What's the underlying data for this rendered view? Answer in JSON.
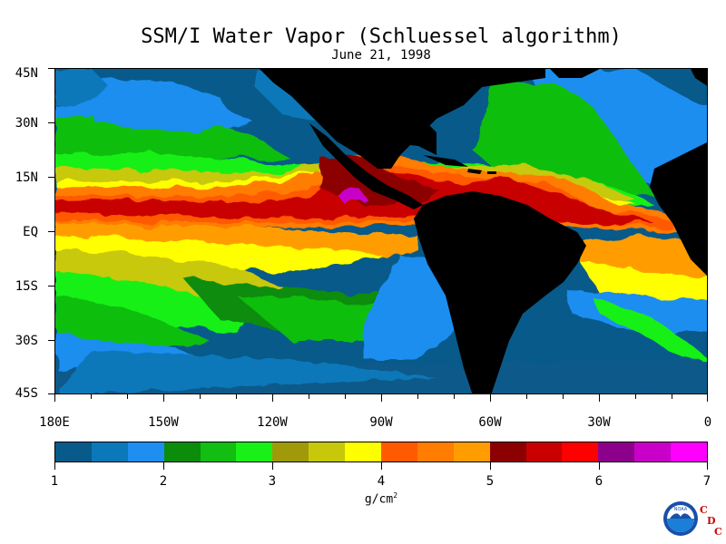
{
  "title": "SSM/I Water Vapor (Schluessel algorithm)",
  "subtitle": "June 21, 1998",
  "map": {
    "latitude_labels": [
      "45N",
      "30N",
      "15N",
      "EQ",
      "15S",
      "30S",
      "45S"
    ],
    "longitude_labels": [
      "180E",
      "150W",
      "120W",
      "90W",
      "60W",
      "30W",
      "0"
    ],
    "extent": {
      "lon": [
        -180,
        0
      ],
      "lat": [
        -45,
        45
      ]
    }
  },
  "colorbar": {
    "colors": [
      "#075a8a",
      "#0a78b9",
      "#1e8ef0",
      "#0b8c0b",
      "#11be11",
      "#18f018",
      "#a09a0a",
      "#c8c80a",
      "#ffff00",
      "#ff5a00",
      "#ff7d00",
      "#ff9d00",
      "#8c0000",
      "#c80000",
      "#ff0000",
      "#8c008c",
      "#c800c8",
      "#ff00ff"
    ],
    "tick_labels": [
      "1",
      "2",
      "3",
      "4",
      "5",
      "6",
      "7"
    ],
    "units_base": "g/cm",
    "units_exp": "2"
  },
  "logo": {
    "org_text": "NOAA",
    "cdc_letters": [
      "C",
      "D",
      "C"
    ]
  },
  "colors": {
    "land": "#000000",
    "ocean_low": "#075a8a"
  }
}
